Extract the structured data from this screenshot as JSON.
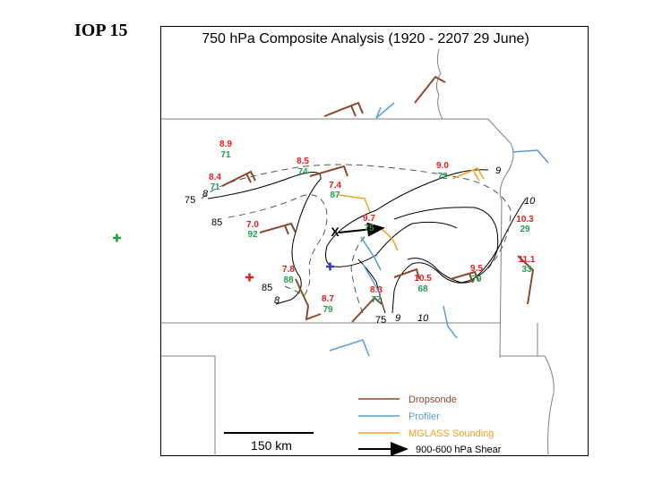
{
  "header": {
    "iop_label": "IOP 15"
  },
  "map": {
    "title": "750 hPa Composite Analysis (1920 - 2207 29 June)",
    "scale_label": "150 km",
    "colors": {
      "dropsonde": "#8b4a2f",
      "profiler": "#5b9bd0",
      "mglass": "#f0a020",
      "shear": "#000000",
      "red_text": "#e02020",
      "green_text": "#20a050",
      "green_marker": "#20a030",
      "red_marker": "#e02020",
      "blue_marker": "#3040c0"
    },
    "station_values": [
      {
        "top": "8.9",
        "bottom": "71"
      },
      {
        "top": "8.5",
        "bottom": "74"
      },
      {
        "top": "8.4",
        "bottom": "71"
      },
      {
        "top": "7.4",
        "bottom": "87"
      },
      {
        "top": "9.0",
        "bottom": "72"
      },
      {
        "top": "7.0",
        "bottom": "92"
      },
      {
        "top": "9.7",
        "bottom": "75"
      },
      {
        "top": "10.3",
        "bottom": "29"
      },
      {
        "top": "11.1",
        "bottom": "33"
      },
      {
        "top": "7.8",
        "bottom": "88"
      },
      {
        "top": "9.5",
        "bottom": "79"
      },
      {
        "top": "10.5",
        "bottom": "68"
      },
      {
        "top": "8.3",
        "bottom": "77"
      },
      {
        "top": "8.7",
        "bottom": "79"
      }
    ],
    "contour_labels": [
      {
        "text": "75",
        "style": "upright"
      },
      {
        "text": "8",
        "style": "italic"
      },
      {
        "text": "85",
        "style": "upright"
      },
      {
        "text": "9",
        "style": "italic"
      },
      {
        "text": "10",
        "style": "italic"
      },
      {
        "text": "85",
        "style": "upright"
      },
      {
        "text": "8",
        "style": "italic"
      },
      {
        "text": "75",
        "style": "upright"
      },
      {
        "text": "9",
        "style": "italic"
      },
      {
        "text": "10",
        "style": "italic"
      }
    ],
    "shear_marker": "X",
    "markers": [
      "green-plus",
      "red-plus",
      "blue-plus"
    ],
    "legend": [
      {
        "label": "Dropsonde",
        "type": "dropsonde"
      },
      {
        "label": "Profiler",
        "type": "profiler"
      },
      {
        "label": "MGLASS Sounding",
        "type": "mglass"
      },
      {
        "label": "900-600 hPa Shear",
        "type": "shear"
      }
    ]
  }
}
